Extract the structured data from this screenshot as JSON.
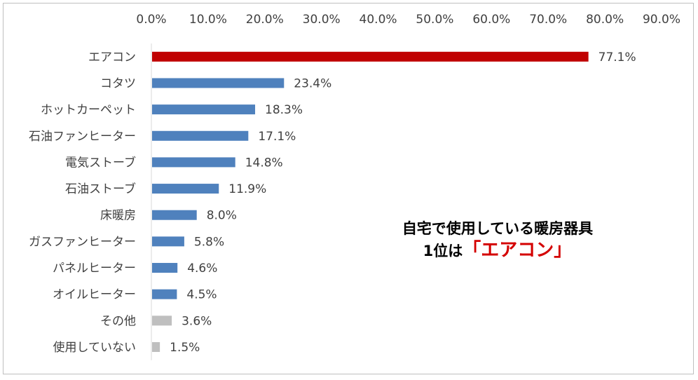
{
  "chart_data": {
    "type": "bar",
    "orientation": "horizontal",
    "categories": [
      "エアコン",
      "コタツ",
      "ホットカーペット",
      "石油ファンヒーター",
      "電気ストーブ",
      "石油ストーブ",
      "床暖房",
      "ガスファンヒーター",
      "パネルヒーター",
      "オイルヒーター",
      "その他",
      "使用していない"
    ],
    "values": [
      77.1,
      23.4,
      18.3,
      17.1,
      14.8,
      11.9,
      8.0,
      5.8,
      4.6,
      4.5,
      3.6,
      1.5
    ],
    "value_labels": [
      "77.1%",
      "23.4%",
      "18.3%",
      "17.1%",
      "14.8%",
      "11.9%",
      "8.0%",
      "5.8%",
      "4.6%",
      "4.5%",
      "3.6%",
      "1.5%"
    ],
    "bar_colors": [
      "#c00000",
      "#4f81bd",
      "#4f81bd",
      "#4f81bd",
      "#4f81bd",
      "#4f81bd",
      "#4f81bd",
      "#4f81bd",
      "#4f81bd",
      "#4f81bd",
      "#bfbfbf",
      "#bfbfbf"
    ],
    "xlim": [
      0,
      90
    ],
    "x_ticks": [
      "0.0%",
      "10.0%",
      "20.0%",
      "30.0%",
      "40.0%",
      "50.0%",
      "60.0%",
      "70.0%",
      "80.0%",
      "90.0%"
    ],
    "x_axis_position": "top",
    "grid": false,
    "title": "",
    "xlabel": "",
    "ylabel": ""
  },
  "annotation": {
    "line1": "自宅で使用している暖房器具",
    "line2_prefix": "1位は",
    "line2_highlight": "「エアコン」"
  }
}
